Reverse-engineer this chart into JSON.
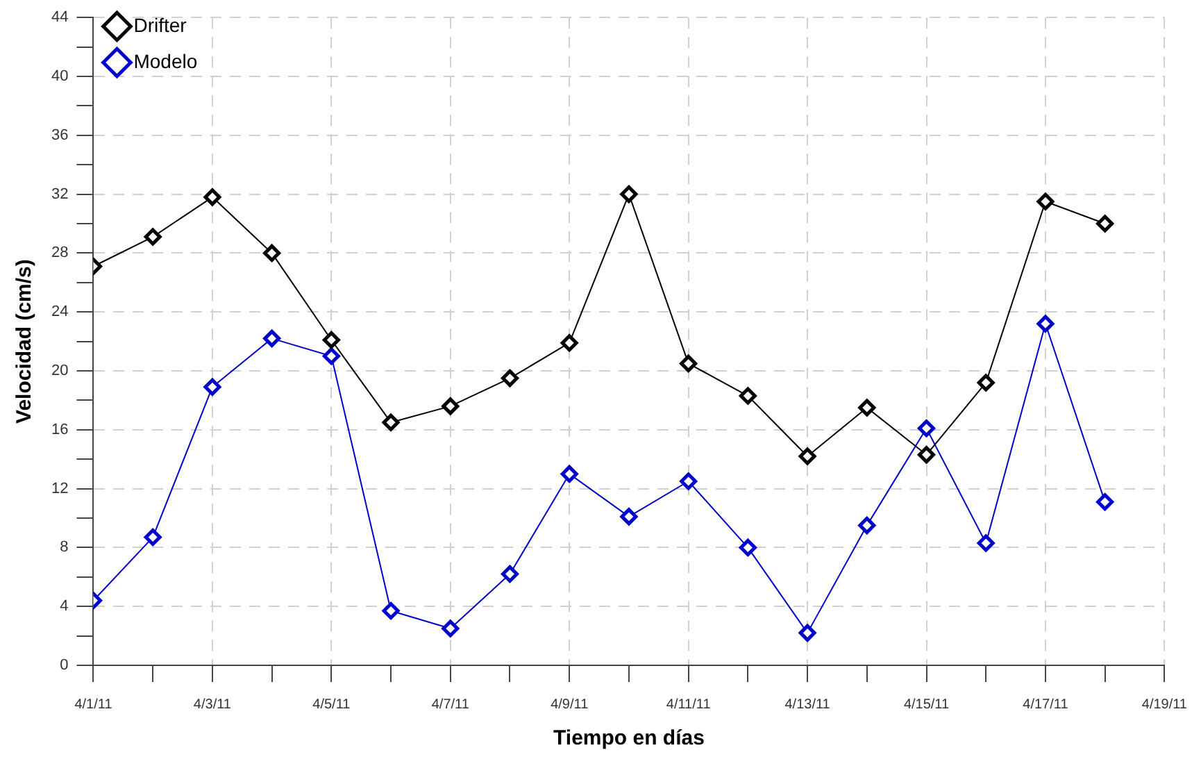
{
  "chart_data": {
    "type": "line",
    "xlabel": "Tiempo en días",
    "ylabel": "Velocidad (cm/s)",
    "x": [
      "--04-01",
      "--04-02",
      "--04-03",
      "--04-04",
      "--04-05",
      "--04-06",
      "--04-07",
      "--04-08",
      "--04-09",
      "--04-10",
      "--04-11",
      "--04-12",
      "--04-13",
      "--04-14",
      "--04-15",
      "--04-16",
      "--04-17",
      "--04-18"
    ],
    "series": [
      {
        "name": "Drifter",
        "color": "#000000",
        "values": [
          27.1,
          29.1,
          31.8,
          28.0,
          22.1,
          16.5,
          17.6,
          19.5,
          21.9,
          32.0,
          20.5,
          18.3,
          14.2,
          17.5,
          14.3,
          19.2,
          31.5,
          30.0
        ]
      },
      {
        "name": "Modelo",
        "color": "#0000cc",
        "values": [
          4.4,
          8.7,
          18.9,
          22.2,
          21.0,
          3.7,
          2.5,
          6.2,
          13.0,
          10.1,
          12.5,
          8.0,
          2.2,
          9.5,
          16.1,
          8.3,
          23.2,
          11.1
        ]
      }
    ],
    "xlim": [
      "--04-01",
      "--04-19"
    ],
    "xticks": [
      {
        "value": "--04-01",
        "label": "4/1/11"
      },
      {
        "value": "--04-02",
        "label": null
      },
      {
        "value": "--04-03",
        "label": "4/3/11"
      },
      {
        "value": "--04-04",
        "label": null
      },
      {
        "value": "--04-05",
        "label": "4/5/11"
      },
      {
        "value": "--04-06",
        "label": null
      },
      {
        "value": "--04-07",
        "label": "4/7/11"
      },
      {
        "value": "--04-08",
        "label": null
      },
      {
        "value": "--04-09",
        "label": "4/9/11"
      },
      {
        "value": "--04-10",
        "label": null
      },
      {
        "value": "--04-11",
        "label": "4/11/11"
      },
      {
        "value": "--04-12",
        "label": null
      },
      {
        "value": "--04-13",
        "label": "4/13/11"
      },
      {
        "value": "--04-14",
        "label": null
      },
      {
        "value": "--04-15",
        "label": "4/15/11"
      },
      {
        "value": "--04-16",
        "label": null
      },
      {
        "value": "--04-17",
        "label": "4/17/11"
      },
      {
        "value": "--04-18",
        "label": null
      },
      {
        "value": "--04-19",
        "label": "4/19/11"
      }
    ],
    "ylim": [
      0,
      44
    ],
    "yticks": [
      0,
      {
        "value": 2,
        "label": null
      },
      4,
      {
        "value": 6,
        "label": null
      },
      8,
      {
        "value": 10,
        "label": null
      },
      12,
      {
        "value": 14,
        "label": null
      },
      16,
      {
        "value": 18,
        "label": null
      },
      20,
      {
        "value": 22,
        "label": null
      },
      24,
      {
        "value": 26,
        "label": null
      },
      28,
      {
        "value": 30,
        "label": null
      },
      32,
      {
        "value": 34,
        "label": null
      },
      36,
      {
        "value": 38,
        "label": null
      },
      40,
      {
        "value": 42,
        "label": null
      },
      44
    ],
    "grid": true,
    "legend": "top left",
    "marker": "diamond",
    "line_style": "solid"
  }
}
